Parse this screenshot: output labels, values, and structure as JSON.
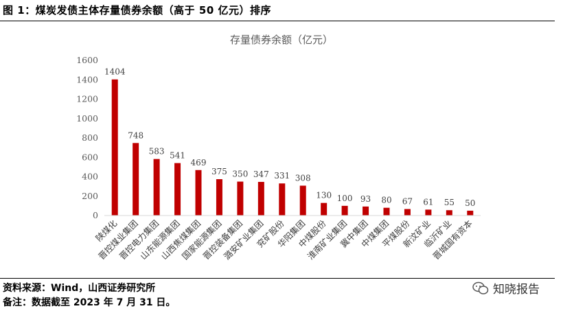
{
  "figure_title": "图 1：煤炭发债主体存量债券余额（高于 50 亿元）排序",
  "source_text": "资料来源：Wind，山西证券研究所",
  "note_text": "备注：数据截至 2023 年 7 月 31 日。",
  "watermark_text": "知晓报告",
  "colors": {
    "bar": "#C00000"
  },
  "chart_data": {
    "type": "bar",
    "title": "存量债券余额（亿元）",
    "xlabel": "",
    "ylabel": "",
    "ylim": [
      0,
      1600
    ],
    "yticks": [
      0,
      200,
      400,
      600,
      800,
      1000,
      1200,
      1400,
      1600
    ],
    "grid": false,
    "categories": [
      "陕煤化",
      "晋控煤业集团",
      "晋控电力集团",
      "山东能源集团",
      "山西焦煤集团",
      "国家能源集团",
      "晋控装备集团",
      "潞安矿业集团",
      "兖矿股份",
      "华阳集团",
      "中煤股份",
      "淮南矿业集团",
      "冀中集团",
      "中煤集团",
      "平煤股份",
      "新汶矿业",
      "临沂矿业",
      "晋城国有资本"
    ],
    "values": [
      1404,
      748,
      583,
      541,
      469,
      375,
      350,
      347,
      331,
      308,
      130,
      100,
      93,
      80,
      67,
      61,
      55,
      50
    ]
  }
}
